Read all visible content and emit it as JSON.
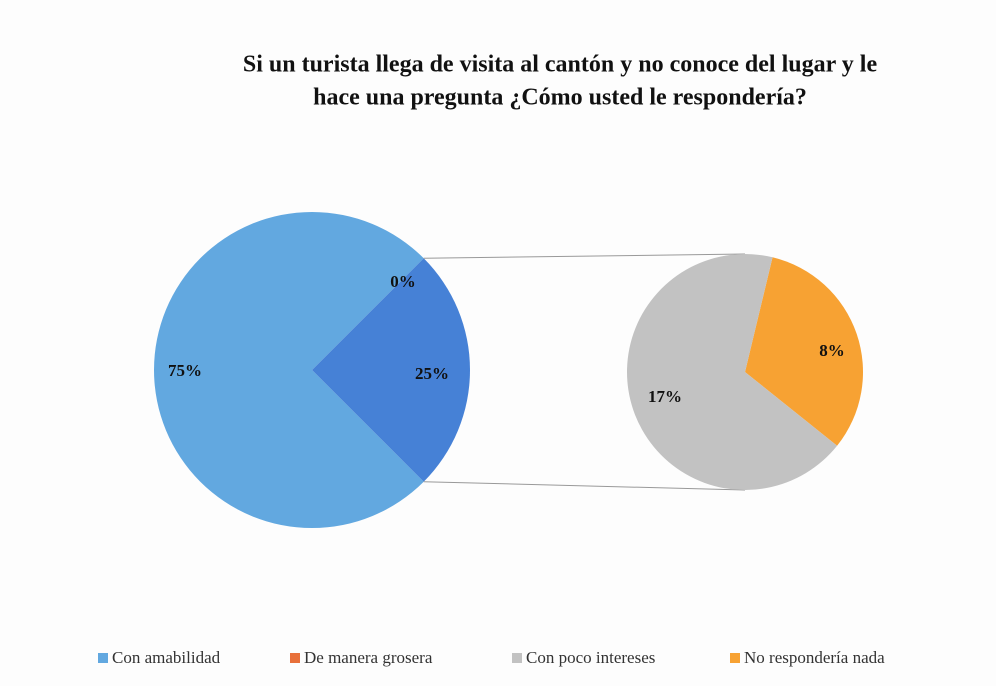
{
  "chart_data": {
    "type": "pie-of-pie",
    "title": [
      "Si un turista llega de visita al cantón y no conoce del lugar y le",
      "hace una pregunta ¿Cómo usted le respondería?"
    ],
    "categories": [
      "Con amabilidad",
      "De manera grosera",
      "Con poco intereses",
      "No respondería nada"
    ],
    "values": [
      75,
      0,
      17,
      8
    ],
    "value_labels": [
      "75%",
      "0%",
      "17%",
      "8%"
    ],
    "colors": [
      "#62a8e0",
      "#e8703a",
      "#c2c2c2",
      "#f7a233"
    ],
    "other": {
      "value": 25,
      "label": "25%",
      "color": "#4681d6"
    },
    "legend": "bottom"
  }
}
